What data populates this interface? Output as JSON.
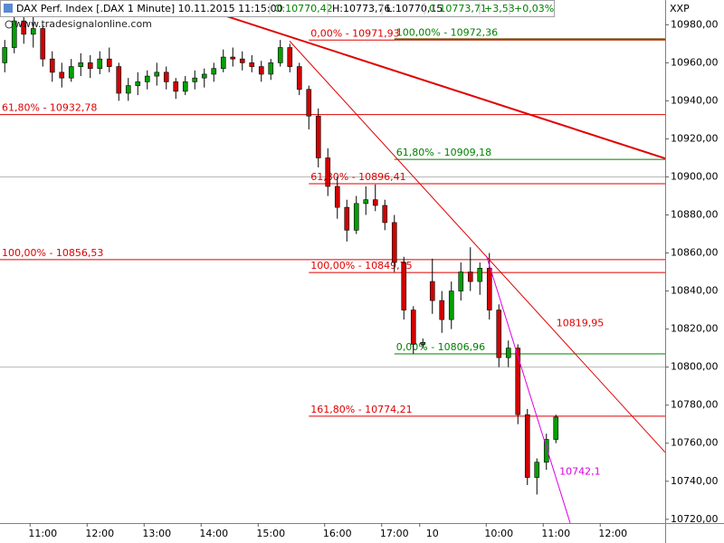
{
  "chart_data": {
    "type": "candlestick",
    "title": "DAX Perf. Index [.DAX  1 Minute]  10.11.2015 11:15:00",
    "quote": [
      {
        "text": "O:10770,42",
        "color": "#008000"
      },
      {
        "text": "H:10773,76",
        "color": "#000000"
      },
      {
        "text": "L:10770,15",
        "color": "#000000"
      },
      {
        "text": "C:10773,71",
        "color": "#008000"
      },
      {
        "text": "+3,53",
        "color": "#008000"
      },
      {
        "text": "+0,03%",
        "color": "#008000"
      }
    ],
    "watermark": "www.tradesignalonline.com",
    "y_axis_label": "XXP",
    "categories": [
      null,
      null,
      null,
      null,
      "11:00",
      null,
      null,
      null,
      null,
      null,
      "12:00",
      null,
      null,
      null,
      null,
      null,
      "13:00",
      null,
      null,
      null,
      null,
      null,
      "14:00",
      null,
      null,
      null,
      null,
      null,
      "15:00",
      null,
      null,
      null,
      null,
      null,
      null,
      "16:00",
      null,
      null,
      null,
      null,
      null,
      "17:00",
      null,
      null,
      null,
      "10",
      null,
      null,
      null,
      null,
      null,
      null,
      "10:00",
      null,
      null,
      null,
      null,
      null,
      "11:00",
      null,
      null,
      null,
      null,
      null,
      "12:00",
      null,
      null,
      null,
      null,
      null
    ],
    "ohlc": [
      [
        10960,
        10972,
        10955,
        10968
      ],
      [
        10968,
        10990,
        10965,
        10982
      ],
      [
        10982,
        10986,
        10970,
        10975
      ],
      [
        10975,
        10988,
        10968,
        10978
      ],
      [
        10978,
        10980,
        10958,
        10962
      ],
      [
        10962,
        10966,
        10950,
        10955
      ],
      [
        10955,
        10960,
        10947,
        10952
      ],
      [
        10952,
        10962,
        10950,
        10958
      ],
      [
        10958,
        10965,
        10953,
        10960
      ],
      [
        10960,
        10964,
        10952,
        10957
      ],
      [
        10957,
        10966,
        10954,
        10962
      ],
      [
        10962,
        10968,
        10955,
        10958
      ],
      [
        10958,
        10960,
        10940,
        10944
      ],
      [
        10944,
        10952,
        10940,
        10948
      ],
      [
        10948,
        10955,
        10943,
        10950
      ],
      [
        10950,
        10956,
        10946,
        10953
      ],
      [
        10953,
        10960,
        10948,
        10955
      ],
      [
        10955,
        10958,
        10946,
        10950
      ],
      [
        10950,
        10952,
        10941,
        10945
      ],
      [
        10945,
        10953,
        10943,
        10950
      ],
      [
        10950,
        10956,
        10946,
        10952
      ],
      [
        10952,
        10957,
        10947,
        10954
      ],
      [
        10954,
        10960,
        10950,
        10957
      ],
      [
        10957,
        10967,
        10955,
        10963
      ],
      [
        10963,
        10968,
        10958,
        10962
      ],
      [
        10962,
        10966,
        10956,
        10960
      ],
      [
        10960,
        10964,
        10955,
        10958
      ],
      [
        10958,
        10961,
        10950,
        10954
      ],
      [
        10954,
        10962,
        10951,
        10960
      ],
      [
        10960,
        10972,
        10958,
        10968
      ],
      [
        10968,
        10970,
        10955,
        10958
      ],
      [
        10958,
        10960,
        10943,
        10946
      ],
      [
        10946,
        10948,
        10925,
        10932
      ],
      [
        10932,
        10936,
        10905,
        10910
      ],
      [
        10910,
        10915,
        10890,
        10895
      ],
      [
        10895,
        10900,
        10878,
        10884
      ],
      [
        10884,
        10888,
        10866,
        10872
      ],
      [
        10872,
        10890,
        10870,
        10886
      ],
      [
        10886,
        10895,
        10880,
        10888
      ],
      [
        10888,
        10896,
        10882,
        10885
      ],
      [
        10885,
        10888,
        10872,
        10876
      ],
      [
        10876,
        10880,
        10850,
        10855
      ],
      [
        10855,
        10858,
        10825,
        10830
      ],
      [
        10830,
        10832,
        10807,
        10812
      ],
      [
        10812,
        10815,
        10810,
        10813
      ],
      [
        10845,
        10857,
        10828,
        10835
      ],
      [
        10835,
        10840,
        10818,
        10825
      ],
      [
        10825,
        10845,
        10820,
        10840
      ],
      [
        10840,
        10855,
        10835,
        10850
      ],
      [
        10850,
        10863,
        10840,
        10845
      ],
      [
        10845,
        10855,
        10838,
        10852
      ],
      [
        10852,
        10860,
        10825,
        10830
      ],
      [
        10830,
        10833,
        10800,
        10805
      ],
      [
        10805,
        10814,
        10800,
        10810
      ],
      [
        10810,
        10812,
        10770,
        10775
      ],
      [
        10775,
        10778,
        10738,
        10742
      ],
      [
        10742,
        10752,
        10733,
        10750
      ],
      [
        10750,
        10765,
        10746,
        10762
      ],
      [
        10762,
        10775,
        10760,
        10773.71
      ],
      null,
      null,
      null,
      null,
      null,
      null,
      null,
      null,
      null,
      null,
      null
    ],
    "up_color": "#00a000",
    "down_color": "#d00000",
    "ylim": [
      10718,
      10993
    ],
    "yticks": [
      {
        "value": 10720,
        "label": "10720,00"
      },
      {
        "value": 10740,
        "label": "10740,00"
      },
      {
        "value": 10760,
        "label": "10760,00"
      },
      {
        "value": 10780,
        "label": "10780,00"
      },
      {
        "value": 10800,
        "label": "10800,00"
      },
      {
        "value": 10820,
        "label": "10820,00"
      },
      {
        "value": 10840,
        "label": "10840,00"
      },
      {
        "value": 10860,
        "label": "10860,00"
      },
      {
        "value": 10880,
        "label": "10880,00"
      },
      {
        "value": 10900,
        "label": "10900,00"
      },
      {
        "value": 10920,
        "label": "10920,00"
      },
      {
        "value": 10940,
        "label": "10940,00"
      },
      {
        "value": 10960,
        "label": "10960,00"
      },
      {
        "value": 10980,
        "label": "10980,00"
      }
    ],
    "hlines": [
      10900,
      10800
    ],
    "hline_color": "#b8b8b8",
    "levels": [
      {
        "label": "0,00% - 10971,93",
        "value": 10971.93,
        "x_start": 32,
        "color": "#e00000"
      },
      {
        "label": "100,00% - 10972,36",
        "value": 10972.36,
        "x_start": 41,
        "color": "#008000",
        "line_color": "#7a4a00"
      },
      {
        "label": "61,80% - 10932,78",
        "value": 10932.78,
        "x_start": -0.5,
        "color": "#e00000"
      },
      {
        "label": "61,80% - 10909,18",
        "value": 10909.18,
        "x_start": 41,
        "color": "#008000"
      },
      {
        "label": "61,80% - 10896,41",
        "value": 10896.41,
        "x_start": 32,
        "color": "#e00000"
      },
      {
        "label": "100,00% - 10856,53",
        "value": 10856.53,
        "x_start": -0.5,
        "color": "#e00000"
      },
      {
        "label": "100,00% - 10849,75",
        "value": 10849.75,
        "x_start": 32,
        "color": "#e00000"
      },
      {
        "label": "0,00% - 10806,96",
        "value": 10806.96,
        "x_start": 41,
        "color": "#008000"
      },
      {
        "label": "161,80% - 10774,21",
        "value": 10774.21,
        "x_start": 32,
        "color": "#e00000"
      }
    ],
    "trendlines": [
      {
        "x": [
          18.07,
          69.5
        ],
        "y": [
          10993,
          10909.7
        ],
        "color": "#e00000",
        "width": 2
      },
      {
        "x": [
          29.98,
          69.5
        ],
        "y": [
          10971.4,
          10755.2
        ],
        "color": "#e00000",
        "width": 1,
        "label": "10819,95",
        "value": 10819.95
      },
      {
        "x": [
          50.7,
          59.5
        ],
        "y": [
          10858.3,
          10718.1
        ],
        "color": "#e000e0",
        "width": 1,
        "label": "10742,1",
        "value": 10742.1
      }
    ]
  }
}
